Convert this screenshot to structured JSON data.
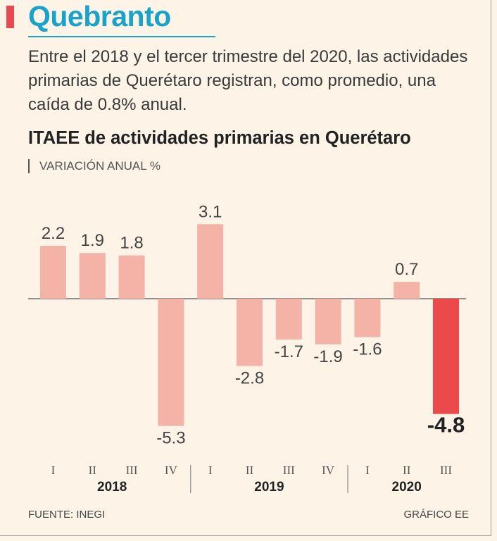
{
  "header": {
    "title": "Quebranto",
    "lede": "Entre el 2018 y el tercer trimestre del 2020, las actividades primarias de Querétaro registran, como promedio, una caída de 0.8% anual."
  },
  "colors": {
    "accent": "#e84a4f",
    "headline": "#1aa3c9",
    "bar": "#f5b2a6",
    "bar_highlight": "#ec4a4a"
  },
  "chart_data": {
    "type": "bar",
    "title": "ITAEE de actividades primarias en Querétaro",
    "ylabel": "VARIACIÓN ANUAL %",
    "xlabel": "",
    "quarters": [
      "I",
      "II",
      "III",
      "IV",
      "I",
      "II",
      "III",
      "IV",
      "I",
      "II",
      "III"
    ],
    "years": [
      {
        "label": "2018",
        "quarters": 4
      },
      {
        "label": "2019",
        "quarters": 4
      },
      {
        "label": "2020",
        "quarters": 3
      }
    ],
    "values": [
      2.2,
      1.9,
      1.8,
      -5.3,
      3.1,
      -2.8,
      -1.7,
      -1.9,
      -1.6,
      0.7,
      -4.8
    ],
    "labels": [
      "2.2",
      "1.9",
      "1.8",
      "-5.3",
      "3.1",
      "-2.8",
      "-1.7",
      "-1.9",
      "-1.6",
      "0.7",
      "-4.8"
    ],
    "highlight_index": 10,
    "ylim": [
      -5.5,
      3.5
    ],
    "grid": false
  },
  "footer": {
    "source": "FUENTE: INEGI",
    "credit": "GRÁFICO EE"
  }
}
